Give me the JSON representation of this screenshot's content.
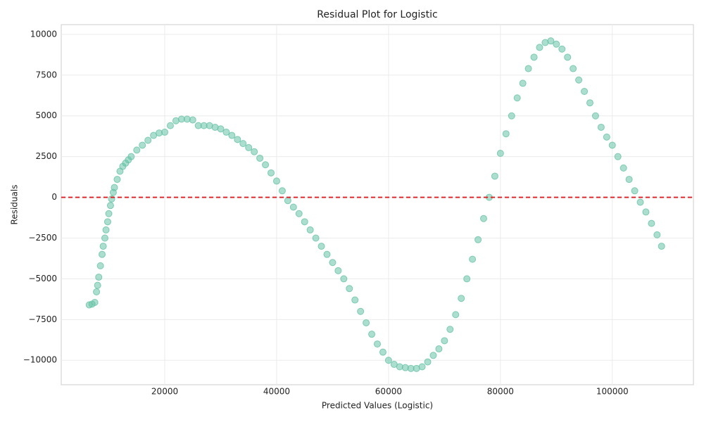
{
  "chart_data": {
    "type": "scatter",
    "title": "Residual Plot for Logistic",
    "x_label": "Predicted Values (Logistic)",
    "y_label": "Residuals",
    "color": "#66c2a5",
    "grid": true,
    "reference_line": {
      "y": 0,
      "color": "#e41a1c"
    },
    "xlim": [
      1500,
      114500
    ],
    "ylim": [
      -11500,
      10600
    ],
    "xticks": [
      20000,
      40000,
      60000,
      80000,
      100000
    ],
    "yticks": [
      {
        "value": -10000,
        "label": "−10000"
      },
      {
        "value": -7500,
        "label": "−7500"
      },
      {
        "value": -5000,
        "label": "−5000"
      },
      {
        "value": -2500,
        "label": "−2500"
      },
      0,
      2500,
      5000,
      7500,
      10000
    ],
    "x": [
      6500,
      7000,
      7500,
      7800,
      8000,
      8200,
      8500,
      8800,
      9000,
      9300,
      9500,
      9800,
      10000,
      10300,
      10500,
      10800,
      11000,
      11500,
      12000,
      12500,
      13000,
      13500,
      14000,
      15000,
      16000,
      17000,
      18000,
      19000,
      20000,
      21000,
      22000,
      23000,
      24000,
      25000,
      26000,
      27000,
      28000,
      29000,
      30000,
      31000,
      32000,
      33000,
      34000,
      35000,
      36000,
      37000,
      38000,
      39000,
      40000,
      41000,
      42000,
      43000,
      44000,
      45000,
      46000,
      47000,
      48000,
      49000,
      50000,
      51000,
      52000,
      53000,
      54000,
      55000,
      56000,
      57000,
      58000,
      59000,
      60000,
      61000,
      62000,
      63000,
      64000,
      65000,
      66000,
      67000,
      68000,
      69000,
      70000,
      71000,
      72000,
      73000,
      74000,
      75000,
      76000,
      77000,
      78000,
      79000,
      80000,
      81000,
      82000,
      83000,
      84000,
      85000,
      86000,
      87000,
      88000,
      89000,
      90000,
      91000,
      92000,
      93000,
      94000,
      95000,
      96000,
      97000,
      98000,
      99000,
      100000,
      101000,
      102000,
      103000,
      104000,
      105000,
      106000,
      107000,
      108000,
      108800
    ],
    "values": [
      -6600,
      -6550,
      -6450,
      -5800,
      -5400,
      -4900,
      -4200,
      -3500,
      -3000,
      -2500,
      -2000,
      -1500,
      -1000,
      -500,
      -100,
      300,
      600,
      1100,
      1600,
      1900,
      2100,
      2300,
      2500,
      2900,
      3200,
      3500,
      3800,
      3950,
      4000,
      4400,
      4700,
      4800,
      4800,
      4750,
      4400,
      4400,
      4400,
      4300,
      4200,
      4000,
      3800,
      3550,
      3300,
      3050,
      2800,
      2400,
      2000,
      1500,
      1000,
      400,
      -200,
      -600,
      -1000,
      -1500,
      -2000,
      -2500,
      -3000,
      -3500,
      -4000,
      -4500,
      -5000,
      -5600,
      -6300,
      -7000,
      -7700,
      -8400,
      -9000,
      -9500,
      -10000,
      -10250,
      -10400,
      -10450,
      -10500,
      -10500,
      -10400,
      -10100,
      -9700,
      -9300,
      -8800,
      -8100,
      -7200,
      -6200,
      -5000,
      -3800,
      -2600,
      -1300,
      0,
      1300,
      2700,
      3900,
      5000,
      6100,
      7000,
      7900,
      8600,
      9200,
      9500,
      9600,
      9400,
      9100,
      8600,
      7900,
      7200,
      6500,
      5800,
      5000,
      4300,
      3700,
      3200,
      2500,
      1800,
      1100,
      400,
      -300,
      -900,
      -1600,
      -2300,
      -3000
    ]
  }
}
